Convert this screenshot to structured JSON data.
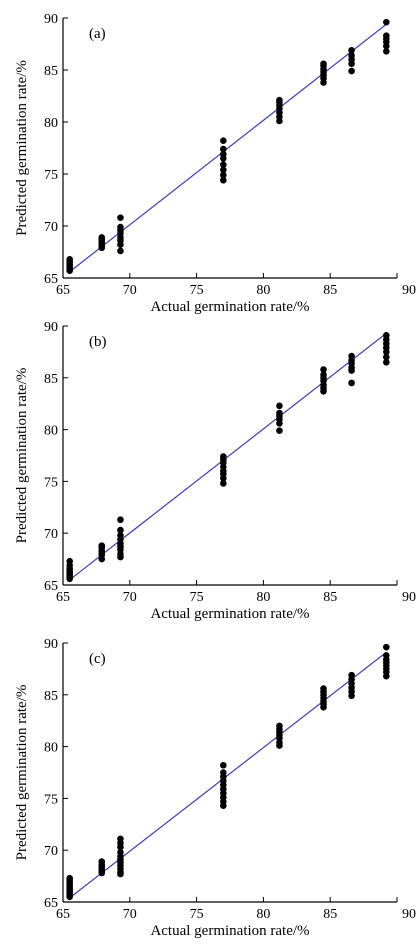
{
  "chart_data": [
    {
      "type": "scatter",
      "panel_label": "(a)",
      "xlabel": "Actual germination rate/%",
      "ylabel": "Predicted germination rate/%",
      "xlim": [
        65,
        90
      ],
      "ylim": [
        65,
        90
      ],
      "x_ticks": [
        "65",
        "70",
        "75",
        "80",
        "85",
        "90"
      ],
      "x_ticks_shown": [
        "65",
        "70",
        "75",
        "80",
        "85",
        "90"
      ],
      "y_ticks": [
        "65",
        "70",
        "75",
        "80",
        "85",
        "90"
      ],
      "fit_line": {
        "x": [
          65.5,
          89.2
        ],
        "y": [
          65.6,
          89.4
        ],
        "color": "#3b3bb0"
      },
      "points": {
        "x": [
          65.5,
          65.5,
          65.5,
          65.5,
          65.5,
          65.5,
          65.5,
          65.5,
          67.9,
          67.9,
          67.9,
          67.9,
          67.9,
          67.9,
          69.3,
          69.3,
          69.3,
          69.3,
          69.3,
          69.3,
          69.3,
          69.3,
          77.0,
          77.0,
          77.0,
          77.0,
          77.0,
          77.0,
          77.0,
          77.0,
          81.2,
          81.2,
          81.2,
          81.2,
          81.2,
          81.2,
          81.2,
          84.5,
          84.5,
          84.5,
          84.5,
          84.5,
          84.5,
          84.5,
          86.6,
          86.6,
          86.6,
          86.6,
          86.6,
          89.2,
          89.2,
          89.2,
          89.2,
          89.2,
          89.2
        ],
        "y": [
          65.7,
          65.9,
          66.0,
          66.2,
          66.3,
          66.5,
          66.6,
          66.8,
          67.9,
          68.1,
          68.3,
          68.5,
          68.7,
          68.9,
          67.6,
          68.2,
          68.6,
          68.9,
          69.3,
          69.6,
          69.9,
          70.8,
          74.4,
          74.9,
          75.4,
          75.9,
          76.5,
          76.9,
          77.4,
          78.2,
          80.1,
          80.5,
          80.9,
          81.3,
          81.6,
          81.9,
          82.1,
          83.8,
          84.2,
          84.5,
          84.8,
          85.1,
          85.4,
          85.6,
          84.9,
          85.6,
          86.0,
          86.4,
          86.9,
          86.8,
          87.3,
          87.7,
          88.0,
          88.3,
          89.6
        ]
      }
    },
    {
      "type": "scatter",
      "panel_label": "(b)",
      "xlabel": "Actual germination rate/%",
      "ylabel": "Predicted germination rate/%",
      "xlim": [
        65,
        90
      ],
      "ylim": [
        65,
        90
      ],
      "x_ticks": [
        "65",
        "70",
        "75",
        "80",
        "85",
        "90"
      ],
      "x_ticks_shown": [
        "65",
        "70",
        "75",
        "80",
        "85",
        "90"
      ],
      "y_ticks": [
        "65",
        "70",
        "75",
        "80",
        "85",
        "90"
      ],
      "fit_line": {
        "x": [
          65.5,
          89.2
        ],
        "y": [
          65.5,
          89.3
        ],
        "color": "#3b3bb0"
      },
      "points": {
        "x": [
          65.5,
          65.5,
          65.5,
          65.5,
          65.5,
          65.5,
          65.5,
          65.5,
          67.9,
          67.9,
          67.9,
          67.9,
          67.9,
          67.9,
          69.3,
          69.3,
          69.3,
          69.3,
          69.3,
          69.3,
          69.3,
          69.3,
          69.3,
          77.0,
          77.0,
          77.0,
          77.0,
          77.0,
          77.0,
          77.0,
          77.0,
          81.2,
          81.2,
          81.2,
          81.2,
          81.2,
          81.2,
          84.5,
          84.5,
          84.5,
          84.5,
          84.5,
          84.5,
          84.5,
          86.6,
          86.6,
          86.6,
          86.6,
          86.6,
          86.6,
          89.2,
          89.2,
          89.2,
          89.2,
          89.2,
          89.2,
          89.2
        ],
        "y": [
          65.6,
          65.8,
          66.0,
          66.2,
          66.4,
          66.6,
          66.9,
          67.3,
          67.5,
          67.9,
          68.1,
          68.3,
          68.6,
          68.8,
          67.7,
          68.0,
          68.4,
          68.7,
          69.0,
          69.4,
          69.8,
          70.3,
          71.3,
          74.8,
          75.3,
          75.7,
          76.0,
          76.4,
          76.8,
          77.1,
          77.4,
          79.9,
          80.6,
          81.0,
          81.3,
          81.6,
          82.3,
          83.7,
          84.0,
          84.3,
          84.7,
          85.0,
          85.3,
          85.8,
          84.5,
          85.7,
          86.0,
          86.4,
          86.7,
          87.1,
          86.5,
          87.0,
          87.5,
          87.9,
          88.3,
          88.7,
          89.1
        ]
      }
    },
    {
      "type": "scatter",
      "panel_label": "(c)",
      "xlabel": "Actual germination rate/%",
      "ylabel": "Predicted germination rate/%",
      "xlim": [
        65,
        90
      ],
      "ylim": [
        65,
        90
      ],
      "x_ticks": [
        "65",
        "70",
        "75",
        "80",
        "85",
        "90"
      ],
      "x_ticks_shown": [
        "65",
        "70",
        "75",
        "80",
        "85",
        "90"
      ],
      "y_ticks": [
        "65",
        "70",
        "75",
        "80",
        "85",
        "90"
      ],
      "fit_line": {
        "x": [
          65.5,
          89.2
        ],
        "y": [
          65.4,
          89.1
        ],
        "color": "#3b3bb0"
      },
      "points": {
        "x": [
          65.5,
          65.5,
          65.5,
          65.5,
          65.5,
          65.5,
          65.5,
          65.5,
          65.5,
          65.5,
          67.9,
          67.9,
          67.9,
          67.9,
          67.9,
          67.9,
          69.3,
          69.3,
          69.3,
          69.3,
          69.3,
          69.3,
          69.3,
          69.3,
          69.3,
          69.3,
          69.3,
          77.0,
          77.0,
          77.0,
          77.0,
          77.0,
          77.0,
          77.0,
          77.0,
          77.0,
          77.0,
          81.2,
          81.2,
          81.2,
          81.2,
          81.2,
          81.2,
          81.2,
          84.5,
          84.5,
          84.5,
          84.5,
          84.5,
          84.5,
          84.5,
          86.6,
          86.6,
          86.6,
          86.6,
          86.6,
          86.6,
          89.2,
          89.2,
          89.2,
          89.2,
          89.2,
          89.2,
          89.2,
          89.2
        ],
        "y": [
          65.5,
          65.7,
          65.9,
          66.1,
          66.3,
          66.5,
          66.7,
          66.9,
          67.1,
          67.3,
          67.8,
          68.0,
          68.2,
          68.4,
          68.6,
          68.9,
          67.7,
          67.9,
          68.2,
          68.5,
          68.8,
          69.1,
          69.4,
          69.8,
          70.3,
          70.7,
          71.1,
          74.3,
          74.7,
          75.1,
          75.5,
          75.9,
          76.3,
          76.7,
          77.1,
          77.5,
          78.2,
          80.1,
          80.4,
          80.8,
          81.1,
          81.4,
          81.7,
          82.0,
          83.8,
          84.1,
          84.4,
          84.7,
          85.0,
          85.3,
          85.6,
          84.9,
          85.3,
          85.7,
          86.1,
          86.5,
          86.9,
          86.8,
          87.2,
          87.5,
          87.8,
          88.1,
          88.4,
          88.8,
          89.6
        ]
      }
    }
  ]
}
